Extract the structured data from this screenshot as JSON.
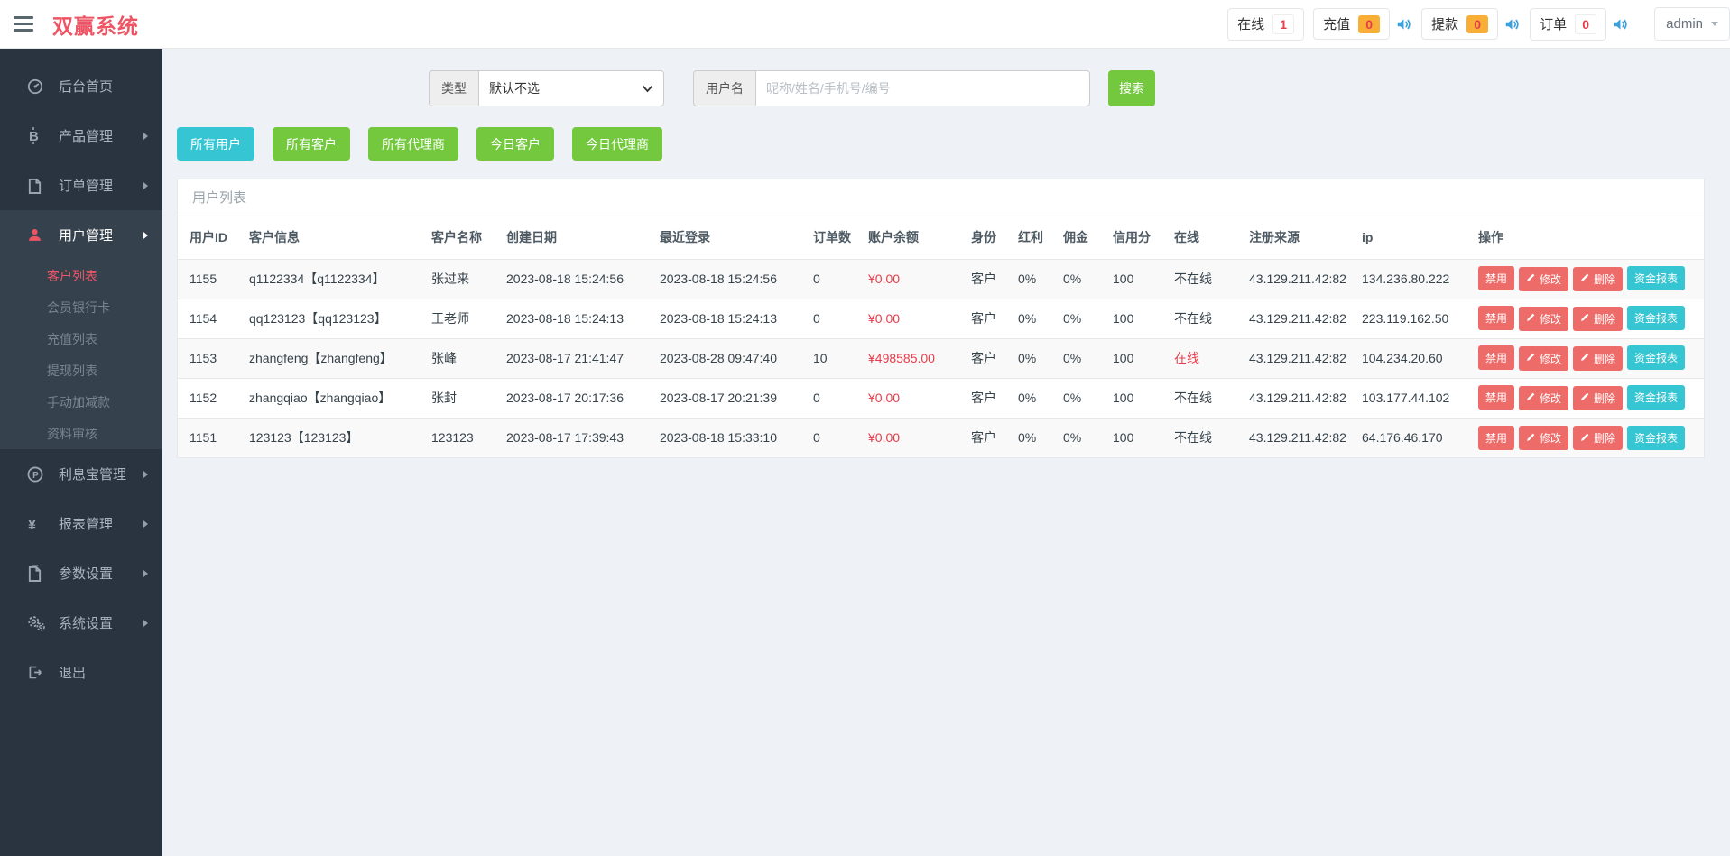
{
  "header": {
    "logo": "双赢系统",
    "stats": [
      {
        "label": "在线",
        "value": "1",
        "style": "plain",
        "speaker": false
      },
      {
        "label": "充值",
        "value": "0",
        "style": "warn",
        "speaker": true
      },
      {
        "label": "提款",
        "value": "0",
        "style": "warn",
        "speaker": true
      },
      {
        "label": "订单",
        "value": "0",
        "style": "plain",
        "speaker": true
      }
    ],
    "user": "admin"
  },
  "sidebar": {
    "items": [
      {
        "label": "后台首页",
        "icon": "dashboard-icon",
        "arrow": false,
        "active": false
      },
      {
        "label": "产品管理",
        "icon": "bitcoin-icon",
        "arrow": true,
        "active": false
      },
      {
        "label": "订单管理",
        "icon": "orders-icon",
        "arrow": true,
        "active": false
      },
      {
        "label": "用户管理",
        "icon": "user-icon",
        "arrow": true,
        "active": true,
        "children": [
          {
            "label": "客户列表",
            "active": true
          },
          {
            "label": "会员银行卡",
            "active": false
          },
          {
            "label": "充值列表",
            "active": false
          },
          {
            "label": "提现列表",
            "active": false
          },
          {
            "label": "手动加减款",
            "active": false
          },
          {
            "label": "资料审核",
            "active": false
          }
        ]
      },
      {
        "label": "利息宝管理",
        "icon": "interest-icon",
        "arrow": true,
        "active": false
      },
      {
        "label": "报表管理",
        "icon": "yen-icon",
        "arrow": true,
        "active": false
      },
      {
        "label": "参数设置",
        "icon": "params-icon",
        "arrow": true,
        "active": false
      },
      {
        "label": "系统设置",
        "icon": "gears-icon",
        "arrow": true,
        "active": false
      },
      {
        "label": "退出",
        "icon": "logout-icon",
        "arrow": false,
        "active": false
      }
    ]
  },
  "search": {
    "type_label": "类型",
    "type_value": "默认不选",
    "username_label": "用户名",
    "username_placeholder": "昵称/姓名/手机号/编号",
    "search_button": "搜索"
  },
  "filters": [
    {
      "label": "所有用户",
      "active": true
    },
    {
      "label": "所有客户",
      "active": false
    },
    {
      "label": "所有代理商",
      "active": false
    },
    {
      "label": "今日客户",
      "active": false
    },
    {
      "label": "今日代理商",
      "active": false
    }
  ],
  "panel": {
    "title": "用户列表",
    "columns": [
      "用户ID",
      "客户信息",
      "客户名称",
      "创建日期",
      "最近登录",
      "订单数",
      "账户余额",
      "身份",
      "红利",
      "佣金",
      "信用分",
      "在线",
      "注册来源",
      "ip",
      "操作"
    ],
    "actions": {
      "disable": "禁用",
      "edit": "修改",
      "delete": "删除",
      "report": "资金报表"
    },
    "rows": [
      {
        "id": "1155",
        "info": "q1122334【q1122334】",
        "name": "张过来",
        "created": "2023-08-18 15:24:56",
        "last_login": "2023-08-18 15:24:56",
        "orders": "0",
        "balance": "¥0.00",
        "role": "客户",
        "bonus": "0%",
        "commission": "0%",
        "credit": "100",
        "online": "不在线",
        "online_state": false,
        "source": "43.129.211.42:82",
        "ip": "134.236.80.222"
      },
      {
        "id": "1154",
        "info": "qq123123【qq123123】",
        "name": "王老师",
        "created": "2023-08-18 15:24:13",
        "last_login": "2023-08-18 15:24:13",
        "orders": "0",
        "balance": "¥0.00",
        "role": "客户",
        "bonus": "0%",
        "commission": "0%",
        "credit": "100",
        "online": "不在线",
        "online_state": false,
        "source": "43.129.211.42:82",
        "ip": "223.119.162.50"
      },
      {
        "id": "1153",
        "info": "zhangfeng【zhangfeng】",
        "name": "张峰",
        "created": "2023-08-17 21:41:47",
        "last_login": "2023-08-28 09:47:40",
        "orders": "10",
        "balance": "¥498585.00",
        "role": "客户",
        "bonus": "0%",
        "commission": "0%",
        "credit": "100",
        "online": "在线",
        "online_state": true,
        "source": "43.129.211.42:82",
        "ip": "104.234.20.60"
      },
      {
        "id": "1152",
        "info": "zhangqiao【zhangqiao】",
        "name": "张封",
        "created": "2023-08-17 20:17:36",
        "last_login": "2023-08-17 20:21:39",
        "orders": "0",
        "balance": "¥0.00",
        "role": "客户",
        "bonus": "0%",
        "commission": "0%",
        "credit": "100",
        "online": "不在线",
        "online_state": false,
        "source": "43.129.211.42:82",
        "ip": "103.177.44.102"
      },
      {
        "id": "1151",
        "info": "123123【123123】",
        "name": "123123",
        "created": "2023-08-17 17:39:43",
        "last_login": "2023-08-18 15:33:10",
        "orders": "0",
        "balance": "¥0.00",
        "role": "客户",
        "bonus": "0%",
        "commission": "0%",
        "credit": "100",
        "online": "不在线",
        "online_state": false,
        "source": "43.129.211.42:82",
        "ip": "64.176.46.170"
      }
    ]
  },
  "colors": {
    "brand_red": "#ed5565",
    "green": "#73c83e",
    "teal": "#36c6d3",
    "danger_button": "#ed6b69",
    "badge_orange": "#f9ae35",
    "badge_text_red": "#e73d4a",
    "speaker_blue": "#3ba0dd",
    "sidebar_bg": "#2a3440",
    "sidebar_active_bg": "#36414e"
  }
}
